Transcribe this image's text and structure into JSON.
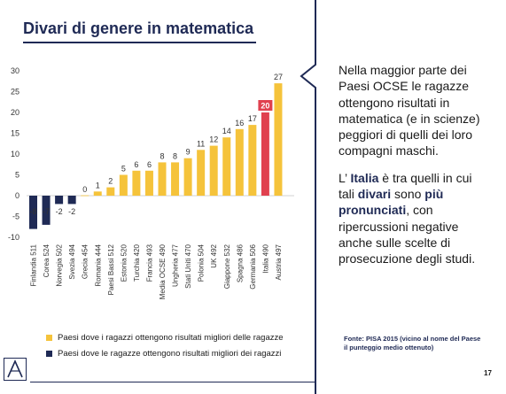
{
  "title": "Divari di genere in matematica",
  "colors": {
    "accent_dark": "#1f2a55",
    "bar_positive": "#f5c33b",
    "bar_negative": "#1f2a55",
    "bar_highlight": "#e0414f",
    "callout_border": "#1f2a55"
  },
  "side_text": {
    "paragraph1": "Nella maggior parte dei Paesi OCSE le ragazze ottengono risultati in matematica (e in scienze) peggiori di quelli dei loro compagni maschi.",
    "paragraph2_pre": "L’ ",
    "paragraph2_italia": "Italia",
    "paragraph2_mid1": " è tra quelli in cui tali ",
    "paragraph2_divari": "divari",
    "paragraph2_mid2": " sono ",
    "paragraph2_pronunciati": "più pronunciati",
    "paragraph2_post": ", con ripercussioni negative anche sulle scelte di prosecuzione degli studi."
  },
  "legend": {
    "positive": "Paesi dove i ragazzi ottengono risultati migliori delle ragazze",
    "negative": "Paesi dove le ragazze ottengono risultati migliori dei ragazzi"
  },
  "source": "Fonte: PISA 2015 (vicino al nome del Paese il punteggio medio ottenuto)",
  "page_number": "17",
  "logo_icon": "logo-a-icon",
  "chart_data": {
    "type": "bar",
    "title": "Divari di genere in matematica",
    "ylim": [
      -10,
      30
    ],
    "yticks": [
      -10,
      -5,
      0,
      5,
      10,
      15,
      20,
      25,
      30
    ],
    "grid": false,
    "legend_position": "bottom",
    "categories": [
      "Finlandia 511",
      "Corea 524",
      "Norvegia 502",
      "Svezia 494",
      "Grecia 454",
      "Romania 444",
      "Paesi Bassi 512",
      "Estonia 520",
      "Turchia 420",
      "Francia 493",
      "Media OCSE 490",
      "Ungheria 477",
      "Stati Uniti 470",
      "Polonia 504",
      "UK 492",
      "Giappone 532",
      "Spagna 486",
      "Germania 506",
      "Italia 490",
      "Austria 497"
    ],
    "values": [
      -8,
      -7,
      -2,
      -2,
      0,
      1,
      2,
      5,
      6,
      6,
      8,
      8,
      9,
      11,
      12,
      14,
      16,
      17,
      20,
      27
    ],
    "highlight_category": "Italia 490"
  }
}
